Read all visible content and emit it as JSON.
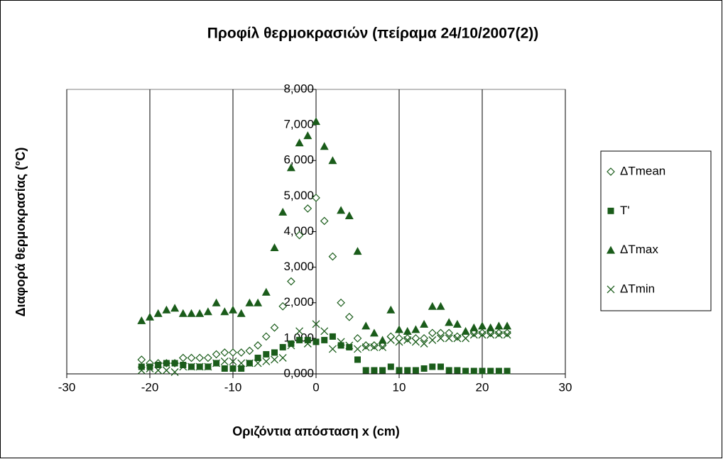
{
  "chart_data": {
    "type": "scatter",
    "title": "Προφίλ θερμοκρασιών (πείραμα 24/10/2007(2))",
    "x_label": "Οριζόντια απόσταση x (cm)",
    "y_label": "Διαφορά θερμοκρασίας (°C)",
    "x": [
      -21,
      -20,
      -19,
      -18,
      -17,
      -16,
      -15,
      -14,
      -13,
      -12,
      -11,
      -10,
      -9,
      -8,
      -7,
      -6,
      -5,
      -4,
      -3,
      -2,
      -1,
      0,
      1,
      2,
      3,
      4,
      5,
      6,
      7,
      8,
      9,
      10,
      11,
      12,
      13,
      14,
      15,
      16,
      17,
      18,
      19,
      20,
      21,
      22,
      23
    ],
    "series": [
      {
        "name": "ΔTmean",
        "color": "#1a5c1a",
        "marker": "diamond",
        "values": [
          0.4,
          0.3,
          0.3,
          0.3,
          0.3,
          0.45,
          0.45,
          0.45,
          0.45,
          0.55,
          0.6,
          0.6,
          0.6,
          0.65,
          0.8,
          1.05,
          1.3,
          1.9,
          2.6,
          3.9,
          4.65,
          4.95,
          4.3,
          3.3,
          2.0,
          1.6,
          1.0,
          0.8,
          0.8,
          0.8,
          1.05,
          1.0,
          1.0,
          1.0,
          1.0,
          1.15,
          1.15,
          1.15,
          1.05,
          1.1,
          1.15,
          1.15,
          1.15,
          1.15,
          1.15
        ]
      },
      {
        "name": "T'",
        "color": "#1a5c1a",
        "marker": "square",
        "values": [
          0.2,
          0.2,
          0.25,
          0.3,
          0.3,
          0.25,
          0.2,
          0.2,
          0.2,
          0.3,
          0.15,
          0.15,
          0.15,
          0.3,
          0.45,
          0.55,
          0.6,
          0.75,
          0.85,
          0.95,
          0.95,
          0.9,
          0.95,
          1.05,
          0.8,
          0.75,
          0.4,
          0.1,
          0.1,
          0.1,
          0.2,
          0.1,
          0.1,
          0.1,
          0.15,
          0.2,
          0.2,
          0.1,
          0.1,
          0.08,
          0.08,
          0.08,
          0.08,
          0.08,
          0.08
        ]
      },
      {
        "name": "ΔTmax",
        "color": "#1a5c1a",
        "marker": "triangle",
        "values": [
          1.5,
          1.6,
          1.7,
          1.8,
          1.85,
          1.7,
          1.7,
          1.7,
          1.75,
          2.0,
          1.75,
          1.8,
          1.7,
          2.0,
          2.0,
          2.3,
          3.55,
          4.55,
          5.8,
          6.5,
          6.7,
          7.1,
          6.4,
          6.0,
          4.6,
          4.45,
          3.45,
          1.35,
          1.15,
          0.95,
          1.8,
          1.25,
          1.2,
          1.25,
          1.4,
          1.9,
          1.9,
          1.45,
          1.4,
          1.2,
          1.3,
          1.35,
          1.3,
          1.35,
          1.35
        ]
      },
      {
        "name": "ΔTmin",
        "color": "#1a5c1a",
        "marker": "x",
        "values": [
          0.1,
          0.15,
          0.1,
          0.1,
          0.05,
          0.2,
          0.2,
          0.2,
          0.2,
          0.3,
          0.35,
          0.35,
          0.3,
          0.3,
          0.3,
          0.35,
          0.4,
          0.45,
          0.8,
          1.2,
          0.85,
          1.4,
          1.2,
          0.7,
          0.9,
          0.8,
          0.7,
          0.75,
          0.75,
          0.75,
          0.95,
          0.9,
          0.95,
          0.9,
          0.85,
          0.95,
          1.0,
          1.0,
          1.0,
          1.0,
          1.1,
          1.1,
          1.1,
          1.1,
          1.1
        ]
      }
    ],
    "xlim": [
      -30,
      30
    ],
    "xticks": [
      -30,
      -20,
      -10,
      0,
      10,
      20,
      30
    ],
    "ylim": [
      0,
      8
    ],
    "yticks": [
      {
        "value": 0,
        "label": "0,000"
      },
      {
        "value": 1,
        "label": "1,000"
      },
      {
        "value": 2,
        "label": "2,000"
      },
      {
        "value": 3,
        "label": "3,000"
      },
      {
        "value": 4,
        "label": "4,000"
      },
      {
        "value": 5,
        "label": "5,000"
      },
      {
        "value": 6,
        "label": "6,000"
      },
      {
        "value": 7,
        "label": "7,000"
      },
      {
        "value": 8,
        "label": "8,000"
      }
    ],
    "grid": "x",
    "legend": "right"
  }
}
